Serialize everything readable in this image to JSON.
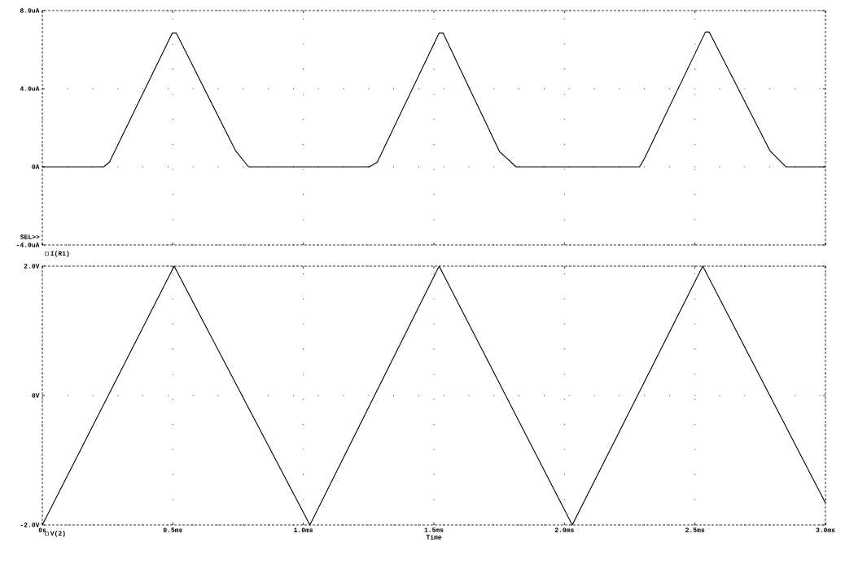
{
  "chart_data": [
    {
      "type": "line",
      "xlim": [
        0,
        3
      ],
      "ylim": [
        -4,
        8
      ],
      "tick_labels": "y",
      "grid": true,
      "legend": "bottom left",
      "annotations": [
        "SEL>>"
      ],
      "xticks": [
        {
          "value": 0,
          "label": null
        },
        {
          "value": 0.5,
          "label": null
        },
        {
          "value": 1.0,
          "label": null
        },
        {
          "value": 1.5,
          "label": null
        },
        {
          "value": 2.0,
          "label": null
        },
        {
          "value": 2.5,
          "label": null
        },
        {
          "value": 3.0,
          "label": null
        }
      ],
      "yticks": [
        {
          "value": -4,
          "label": "-4.0uA"
        },
        {
          "value": 0,
          "label": "0A"
        },
        {
          "value": 4,
          "label": "4.0uA"
        },
        {
          "value": 8,
          "label": "8.0uA"
        }
      ],
      "series": [
        {
          "name": "I(R1)",
          "color": "#000000",
          "x": [
            0,
            0.235,
            0.257,
            0.498,
            0.513,
            0.74,
            0.79,
            1.253,
            1.283,
            1.52,
            1.535,
            1.751,
            1.815,
            2.288,
            2.307,
            2.54,
            2.555,
            2.787,
            2.848,
            3.0
          ],
          "values": [
            0,
            0,
            0.24,
            6.85,
            6.85,
            0.83,
            0,
            0,
            0.24,
            6.85,
            6.85,
            0.79,
            0,
            0,
            0.44,
            6.9,
            6.9,
            0.83,
            0,
            0
          ]
        }
      ]
    },
    {
      "type": "line",
      "xlim": [
        0,
        3
      ],
      "ylim": [
        -2,
        2
      ],
      "grid": true,
      "legend": "bottom left",
      "xlabel": "Time",
      "xticks": [
        {
          "value": 0,
          "label": "0s"
        },
        {
          "value": 0.5,
          "label": "0.5ms"
        },
        {
          "value": 1.0,
          "label": "1.0ms"
        },
        {
          "value": 1.5,
          "label": "1.5ms"
        },
        {
          "value": 2.0,
          "label": "2.0ms"
        },
        {
          "value": 2.5,
          "label": "2.5ms"
        },
        {
          "value": 3.0,
          "label": "3.0ms"
        }
      ],
      "yticks": [
        {
          "value": -2,
          "label": "-2.0V"
        },
        {
          "value": 0,
          "label": "0V"
        },
        {
          "value": 2,
          "label": "2.0V"
        }
      ],
      "series": [
        {
          "name": "V(2)",
          "color": "#000000",
          "x": [
            0,
            0.505,
            1.025,
            1.52,
            2.03,
            2.53,
            3.0
          ],
          "values": [
            -2,
            2,
            -2,
            2,
            -2,
            2,
            -1.66
          ]
        }
      ]
    }
  ]
}
